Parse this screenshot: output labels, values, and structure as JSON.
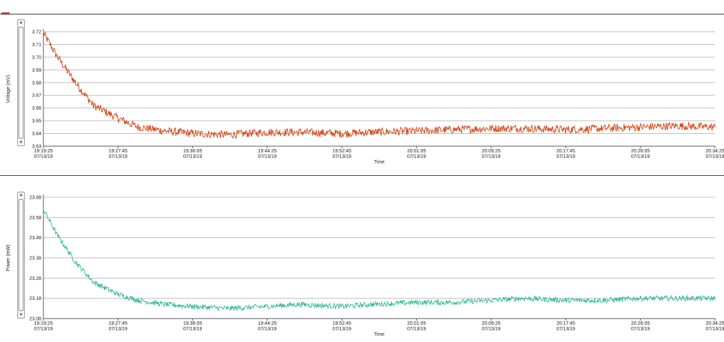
{
  "charts": {
    "top": {
      "ylabel": "Voltage (mV)",
      "xlabel": "Time",
      "color": "#d23a05",
      "ylim": [
        3.63,
        3.72
      ],
      "yticks": [
        "3.72",
        "3.71",
        "3.70",
        "3.69",
        "3.68",
        "3.67",
        "3.66",
        "3.65",
        "3.64",
        "3.63"
      ]
    },
    "bottom": {
      "ylabel": "Power (mW)",
      "xlabel": "Time",
      "color": "#22b58c",
      "ylim": [
        23.08,
        23.68
      ],
      "yticks": [
        "23.68",
        "23.58",
        "23.48",
        "23.38",
        "23.28",
        "23.18",
        "23.08"
      ]
    },
    "xticks": [
      {
        "time": "19:19:25",
        "date": "07/13/19"
      },
      {
        "time": "19:27:45",
        "date": "07/13/19"
      },
      {
        "time": "19:36:05",
        "date": "07/13/19"
      },
      {
        "time": "19:44:25",
        "date": "07/13/19"
      },
      {
        "time": "19:52:45",
        "date": "07/13/19"
      },
      {
        "time": "20:01:05",
        "date": "07/13/19"
      },
      {
        "time": "20:09:25",
        "date": "07/13/19"
      },
      {
        "time": "20:17:45",
        "date": "07/13/19"
      },
      {
        "time": "20:26:05",
        "date": "07/13/19"
      },
      {
        "time": "20:34:25",
        "date": "07/13/19"
      }
    ]
  },
  "chart_data": [
    {
      "type": "line",
      "xlabel": "Time",
      "ylabel": "Voltage (mV)",
      "ylim": [
        3.63,
        3.72
      ],
      "x": [
        "19:19:25",
        "19:21:00",
        "19:23:00",
        "19:25:00",
        "19:27:45",
        "19:30:00",
        "19:33:00",
        "19:36:05",
        "19:40:00",
        "19:44:25",
        "19:48:00",
        "19:52:45",
        "19:56:00",
        "20:01:05",
        "20:05:00",
        "20:09:25",
        "20:13:00",
        "20:17:45",
        "20:22:00",
        "20:26:05",
        "20:30:00",
        "20:34:25"
      ],
      "y": [
        3.719,
        3.7,
        3.68,
        3.662,
        3.652,
        3.645,
        3.642,
        3.64,
        3.639,
        3.641,
        3.641,
        3.64,
        3.641,
        3.642,
        3.643,
        3.644,
        3.644,
        3.643,
        3.644,
        3.645,
        3.646,
        3.645
      ],
      "grid": true,
      "series_color": "#d23a05"
    },
    {
      "type": "line",
      "xlabel": "Time",
      "ylabel": "Power (mW)",
      "ylim": [
        23.08,
        23.68
      ],
      "x": [
        "19:19:25",
        "19:21:00",
        "19:23:00",
        "19:25:00",
        "19:27:45",
        "19:30:00",
        "19:33:00",
        "19:36:05",
        "19:40:00",
        "19:44:25",
        "19:48:00",
        "19:52:45",
        "19:56:00",
        "20:01:05",
        "20:05:00",
        "20:09:25",
        "20:13:00",
        "20:17:45",
        "20:22:00",
        "20:26:05",
        "20:30:00",
        "20:34:25"
      ],
      "y": [
        23.62,
        23.49,
        23.36,
        23.26,
        23.2,
        23.17,
        23.15,
        23.14,
        23.13,
        23.14,
        23.15,
        23.14,
        23.15,
        23.16,
        23.16,
        23.17,
        23.18,
        23.17,
        23.17,
        23.18,
        23.18,
        23.18
      ],
      "grid": true,
      "series_color": "#22b58c"
    }
  ]
}
